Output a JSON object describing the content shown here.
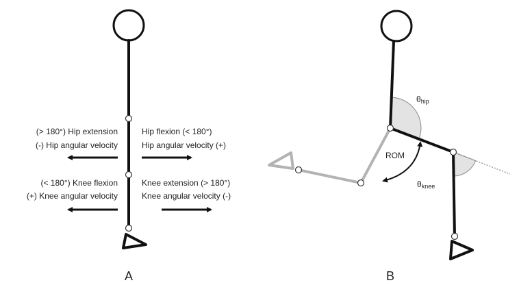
{
  "panel_a": {
    "label": "A",
    "hip": {
      "left": [
        "(> 180°) Hip extension",
        "(-) Hip angular velocity"
      ],
      "right": [
        "Hip flexion (< 180°)",
        "Hip angular velocity (+)"
      ]
    },
    "knee": {
      "left": [
        "(< 180°) Knee flexion",
        "(+) Knee angular velocity"
      ],
      "right": [
        "Knee extension (> 180°)",
        "Knee angular velocity (-)"
      ]
    }
  },
  "panel_b": {
    "label": "B",
    "hip_angle": {
      "symbol": "θ",
      "subscript": "hip"
    },
    "knee_angle": {
      "symbol": "θ",
      "subscript": "knee"
    },
    "rom": "ROM"
  }
}
